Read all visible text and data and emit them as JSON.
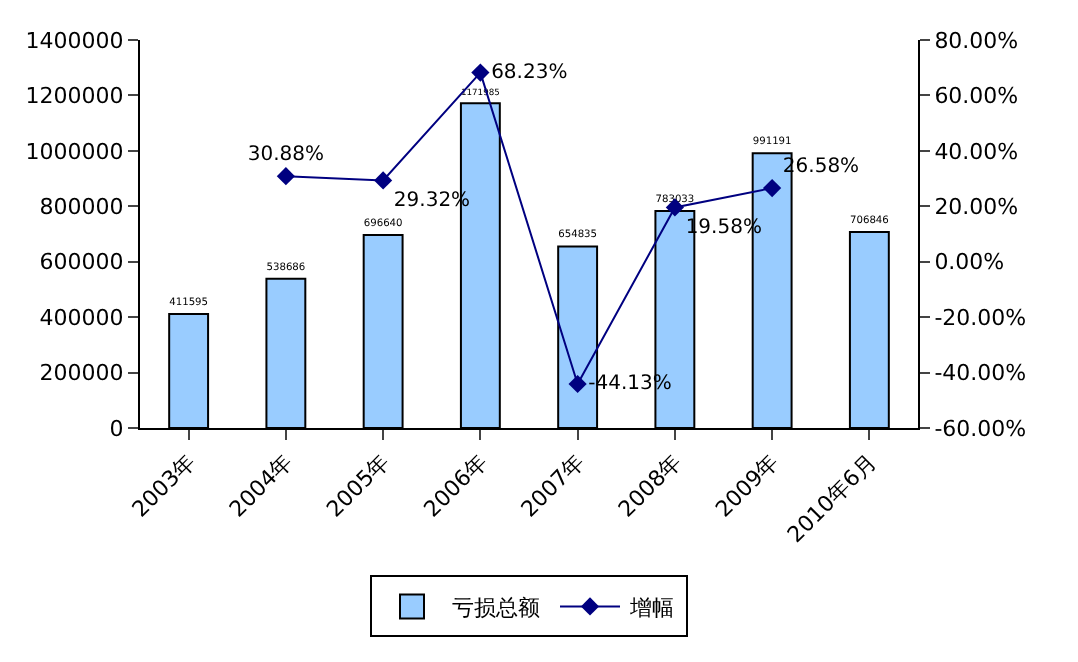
{
  "chart_data": {
    "type": "bar",
    "categories": [
      "2003年",
      "2004年",
      "2005年",
      "2006年",
      "2007年",
      "2008年",
      "2009年",
      "2010年6月"
    ],
    "series": [
      {
        "name": "亏损总额",
        "color": "#99ccff",
        "values": [
          411595,
          538686,
          696640,
          1171985,
          654835,
          783033,
          991191,
          706846
        ],
        "value_labels": [
          "411595",
          "538686",
          "696640",
          "1171985",
          "654835",
          "783033",
          "991191",
          "706846"
        ]
      },
      {
        "name": "增幅",
        "type": "line",
        "axis": "y2",
        "color": "#000080",
        "marker": "diamond",
        "values": [
          null,
          30.88,
          29.32,
          68.23,
          -44.13,
          19.58,
          26.58,
          null
        ],
        "value_labels": [
          null,
          "30.88%",
          "29.32%",
          "68.23%",
          "-44.13%",
          "19.58%",
          "26.58%",
          null
        ]
      }
    ],
    "ylim": [
      0,
      1400000
    ],
    "yticks": [
      0,
      200000,
      400000,
      600000,
      800000,
      1000000,
      1200000,
      1400000
    ],
    "y2lim": [
      -60,
      80
    ],
    "y2ticks": [
      {
        "value": -60,
        "label": "-60.00%"
      },
      {
        "value": -40,
        "label": "-40.00%"
      },
      {
        "value": -20,
        "label": "-20.00%"
      },
      {
        "value": 0,
        "label": "0.00%"
      },
      {
        "value": 20,
        "label": "20.00%"
      },
      {
        "value": 40,
        "label": "40.00%"
      },
      {
        "value": 60,
        "label": "60.00%"
      },
      {
        "value": 80,
        "label": "80.00%"
      }
    ],
    "legend": "bottom"
  }
}
